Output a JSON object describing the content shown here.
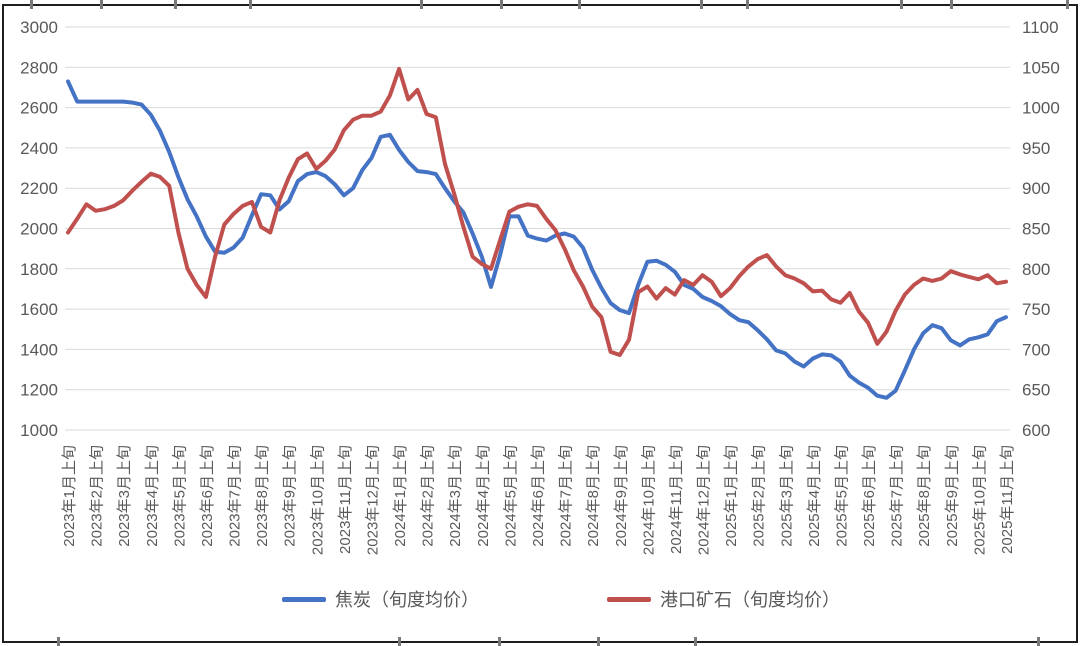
{
  "chart_data": {
    "type": "line",
    "title": "",
    "grid": true,
    "legend_position": "bottom",
    "points_per_label": 3,
    "x_tick_labels": [
      "2023年1月上旬",
      "2023年2月上旬",
      "2023年3月上旬",
      "2023年4月上旬",
      "2023年5月上旬",
      "2023年6月上旬",
      "2023年7月上旬",
      "2023年8月上旬",
      "2023年9月上旬",
      "2023年10月上旬",
      "2023年11月上旬",
      "2023年12月上旬",
      "2024年1月上旬",
      "2024年2月上旬",
      "2024年3月上旬",
      "2024年4月上旬",
      "2024年5月上旬",
      "2024年6月上旬",
      "2024年7月上旬",
      "2024年8月上旬",
      "2024年9月上旬",
      "2024年10月上旬",
      "2024年11月上旬",
      "2024年12月上旬",
      "2025年1月上旬",
      "2025年2月上旬",
      "2025年3月上旬",
      "2025年4月上旬",
      "2025年5月上旬",
      "2025年6月上旬",
      "2025年7月上旬",
      "2025年8月上旬",
      "2025年9月上旬",
      "2025年10月上旬",
      "2025年11月上旬"
    ],
    "left_axis": {
      "min": 1000,
      "max": 3000,
      "ticks": [
        3000,
        2800,
        2600,
        2400,
        2200,
        2000,
        1800,
        1600,
        1400,
        1200,
        1000
      ]
    },
    "right_axis": {
      "min": 600,
      "max": 1100,
      "ticks": [
        1100,
        1050,
        1000,
        950,
        900,
        850,
        800,
        750,
        700,
        650,
        600
      ]
    },
    "series": [
      {
        "name": "焦炭（旬度均价）",
        "color": "#4472C4",
        "axis": "left",
        "values": [
          2730,
          2630,
          2630,
          2630,
          2630,
          2630,
          2630,
          2625,
          2615,
          2565,
          2485,
          2380,
          2255,
          2145,
          2060,
          1960,
          1885,
          1880,
          1905,
          1955,
          2065,
          2170,
          2165,
          2095,
          2135,
          2235,
          2270,
          2280,
          2260,
          2220,
          2165,
          2200,
          2290,
          2350,
          2455,
          2465,
          2390,
          2330,
          2285,
          2280,
          2270,
          2200,
          2135,
          2080,
          1975,
          1860,
          1710,
          1870,
          2060,
          2060,
          1965,
          1950,
          1940,
          1965,
          1975,
          1960,
          1905,
          1795,
          1705,
          1630,
          1595,
          1580,
          1720,
          1835,
          1840,
          1820,
          1785,
          1720,
          1700,
          1660,
          1640,
          1615,
          1575,
          1545,
          1535,
          1495,
          1450,
          1395,
          1380,
          1340,
          1315,
          1355,
          1375,
          1370,
          1340,
          1270,
          1235,
          1210,
          1170,
          1160,
          1195,
          1295,
          1400,
          1480,
          1520,
          1505,
          1445,
          1420,
          1450,
          1460,
          1475,
          1540,
          1560
        ]
      },
      {
        "name": "港口矿石（旬度均价）",
        "color": "#C0504D",
        "axis": "right",
        "values": [
          845,
          862,
          880,
          872,
          874,
          878,
          885,
          897,
          908,
          918,
          914,
          903,
          845,
          800,
          780,
          765,
          815,
          855,
          868,
          878,
          883,
          852,
          845,
          885,
          913,
          936,
          943,
          924,
          934,
          948,
          972,
          985,
          990,
          990,
          995,
          1015,
          1048,
          1010,
          1022,
          992,
          988,
          930,
          893,
          852,
          815,
          806,
          800,
          836,
          871,
          877,
          880,
          878,
          862,
          848,
          825,
          798,
          778,
          753,
          740,
          697,
          693,
          712,
          771,
          778,
          763,
          776,
          768,
          786,
          780,
          792,
          784,
          766,
          776,
          791,
          803,
          812,
          817,
          803,
          792,
          788,
          782,
          772,
          773,
          762,
          758,
          770,
          747,
          733,
          707,
          722,
          748,
          768,
          780,
          788,
          785,
          788,
          797,
          793,
          790,
          787,
          792,
          782,
          784
        ]
      }
    ]
  }
}
